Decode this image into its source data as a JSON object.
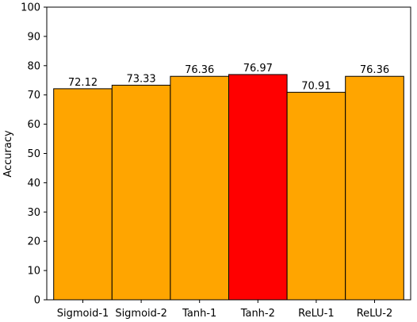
{
  "chart_data": {
    "type": "bar",
    "title": "",
    "xlabel": "",
    "ylabel": "Accuracy",
    "ylim": [
      0,
      100
    ],
    "yticks": [
      0,
      10,
      20,
      30,
      40,
      50,
      60,
      70,
      80,
      90,
      100
    ],
    "categories": [
      "Sigmoid-1",
      "Sigmoid-2",
      "Tanh-1",
      "Tanh-2",
      "ReLU-1",
      "ReLU-2"
    ],
    "values": [
      72.12,
      73.33,
      76.36,
      76.97,
      70.91,
      76.36
    ],
    "value_labels": [
      "72.12",
      "73.33",
      "76.36",
      "76.97",
      "70.91",
      "76.36"
    ],
    "bar_colors": [
      "#ffa500",
      "#ffa500",
      "#ffa500",
      "#ff0000",
      "#ffa500",
      "#ffa500"
    ],
    "grid": false,
    "legend": "none"
  }
}
